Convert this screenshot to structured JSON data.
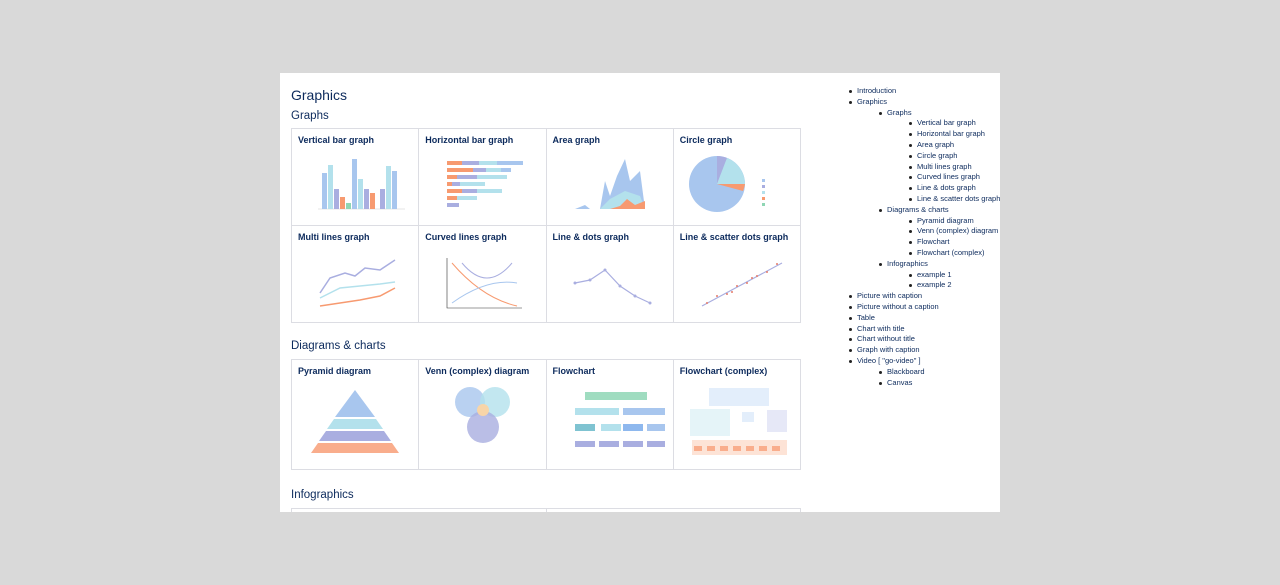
{
  "title": "Graphics",
  "sections": {
    "graphs": "Graphs",
    "diagrams": "Diagrams & charts",
    "infographics": "Infographics"
  },
  "graphs": [
    "Vertical bar graph",
    "Horizontal bar graph",
    "Area graph",
    "Circle graph",
    "Multi lines graph",
    "Curved lines graph",
    "Line & dots graph",
    "Line & scatter dots graph"
  ],
  "diagrams": [
    "Pyramid diagram",
    "Venn (complex) diagram",
    "Flowchart",
    "Flowchart (complex)"
  ],
  "colors": {
    "blue": "#a8c6ee",
    "cyan": "#b3e1ec",
    "purple": "#a9aee0",
    "orange": "#f79a70",
    "green": "#8fd6b4",
    "text": "#0c2a5c"
  },
  "toc": {
    "introduction": "Introduction",
    "graphics": "Graphics",
    "graphs": "Graphs",
    "graph_items": [
      "Vertical bar graph",
      "Horizontal bar graph",
      "Area graph",
      "Circle graph",
      "Multi lines graph",
      "Curved lines graph",
      "Line & dots graph",
      "Line & scatter dots graph"
    ],
    "diagrams": "Diagrams & charts",
    "diagram_items": [
      "Pyramid diagram",
      "Venn (complex) diagram",
      "Flowchart",
      "Flowchart (complex)"
    ],
    "infographics": "Infographics",
    "infographic_items": [
      "example 1",
      "example 2"
    ],
    "rest": [
      "Picture with caption",
      "Picture without a caption",
      "Table",
      "Chart with title",
      "Chart without title",
      "Graph with caption"
    ],
    "video": "Video [ \"go-video\" ]",
    "video_items": [
      "Blackboard",
      "Canvas"
    ]
  }
}
